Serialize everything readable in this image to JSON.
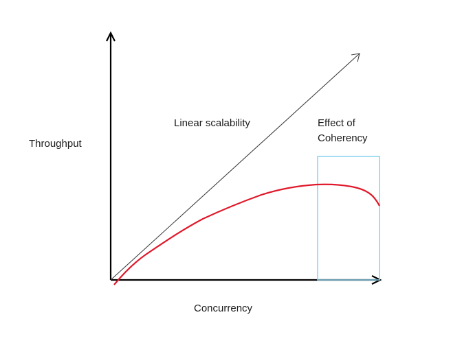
{
  "diagram": {
    "y_axis_label": "Throughput",
    "x_axis_label": "Concurrency",
    "linear_label": "Linear scalability",
    "coherency_label_line1": "Effect of",
    "coherency_label_line2": "Coherency",
    "colors": {
      "axes": "#000000",
      "linear_line": "#404040",
      "curve": "#e0182a",
      "highlight_box": "#87d3ee"
    }
  }
}
